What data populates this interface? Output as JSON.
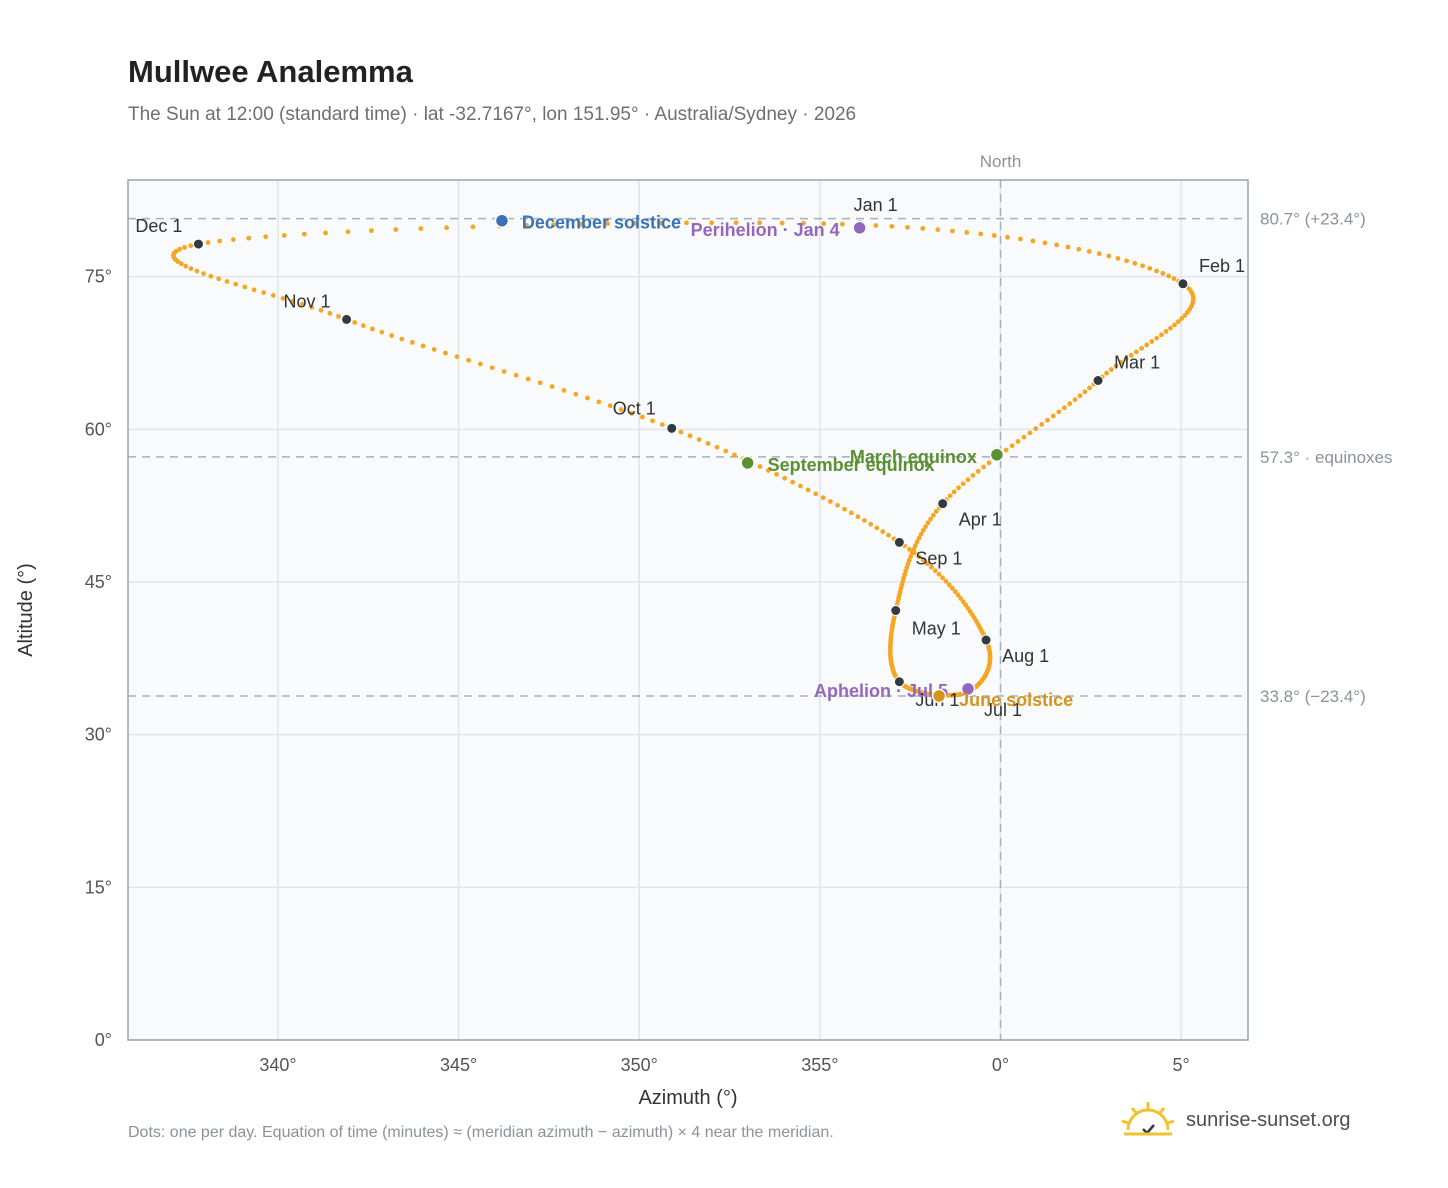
{
  "title": "Mullwee Analemma",
  "subtitle": "The Sun at 12:00 (standard time) · lat -32.7167°, lon 151.95° · Australia/Sydney · 2026",
  "footnote": "Dots: one per day. Equation of time (minutes) ≈ (meridian azimuth − azimuth) × 4 near the meridian.",
  "brand": "sunrise-sunset.org",
  "chart_data": {
    "type": "scatter",
    "xlabel": "Azimuth (°)",
    "ylabel": "Altitude (°)",
    "xlim": [
      335.85,
      6.85
    ],
    "ylim": [
      0,
      84.5
    ],
    "x_ticks": [
      {
        "value": 340,
        "label": "340°"
      },
      {
        "value": 345,
        "label": "345°"
      },
      {
        "value": 350,
        "label": "350°"
      },
      {
        "value": 355,
        "label": "355°"
      },
      {
        "value": 0,
        "label": "0°"
      },
      {
        "value": 5,
        "label": "5°"
      }
    ],
    "y_ticks": [
      {
        "value": 0,
        "label": "0°"
      },
      {
        "value": 15,
        "label": "15°"
      },
      {
        "value": 30,
        "label": "30°"
      },
      {
        "value": 45,
        "label": "45°"
      },
      {
        "value": 60,
        "label": "60°"
      },
      {
        "value": 75,
        "label": "75°"
      }
    ],
    "grid": true,
    "north_line": {
      "azimuth": 0,
      "label": "North"
    },
    "reference_lines": [
      {
        "altitude": 80.7,
        "label": "80.7° (+23.4°)"
      },
      {
        "altitude": 57.3,
        "label": "57.3° · equinoxes"
      },
      {
        "altitude": 33.8,
        "label": "33.8° (−23.4°)"
      }
    ],
    "curve_color": "#f5a623",
    "month_points": [
      {
        "label": "Jan 1",
        "az": 356.1,
        "alt": 80.1
      },
      {
        "label": "Feb 1",
        "az": 5.05,
        "alt": 74.3
      },
      {
        "label": "Mar 1",
        "az": 2.7,
        "alt": 64.8
      },
      {
        "label": "Apr 1",
        "az": 358.4,
        "alt": 52.7
      },
      {
        "label": "May 1",
        "az": 357.1,
        "alt": 42.2
      },
      {
        "label": "Jun 1",
        "az": 357.2,
        "alt": 35.2
      },
      {
        "label": "Jul 1",
        "az": 359.1,
        "alt": 34.2
      },
      {
        "label": "Aug 1",
        "az": 359.6,
        "alt": 39.3
      },
      {
        "label": "Sep 1",
        "az": 357.2,
        "alt": 48.9
      },
      {
        "label": "Oct 1",
        "az": 350.9,
        "alt": 60.1
      },
      {
        "label": "Nov 1",
        "az": 341.9,
        "alt": 70.8
      },
      {
        "label": "Dec 1",
        "az": 337.8,
        "alt": 78.2
      }
    ],
    "events": [
      {
        "label": "December solstice",
        "az": 346.2,
        "alt": 80.5,
        "color": "#3a72b5"
      },
      {
        "label": "Perihelion · Jan 4",
        "az": 356.1,
        "alt": 79.8,
        "color": "#9467bd"
      },
      {
        "label": "March equinox",
        "az": 359.9,
        "alt": 57.5,
        "color": "#5a8f32"
      },
      {
        "label": "September equinox",
        "az": 353.0,
        "alt": 56.7,
        "color": "#5a8f32"
      },
      {
        "label": "Aphelion · Jul 5",
        "az": 359.1,
        "alt": 34.5,
        "color": "#9467bd"
      },
      {
        "label": "June solstice",
        "az": 358.3,
        "alt": 33.8,
        "color": "#d4951e"
      }
    ]
  }
}
